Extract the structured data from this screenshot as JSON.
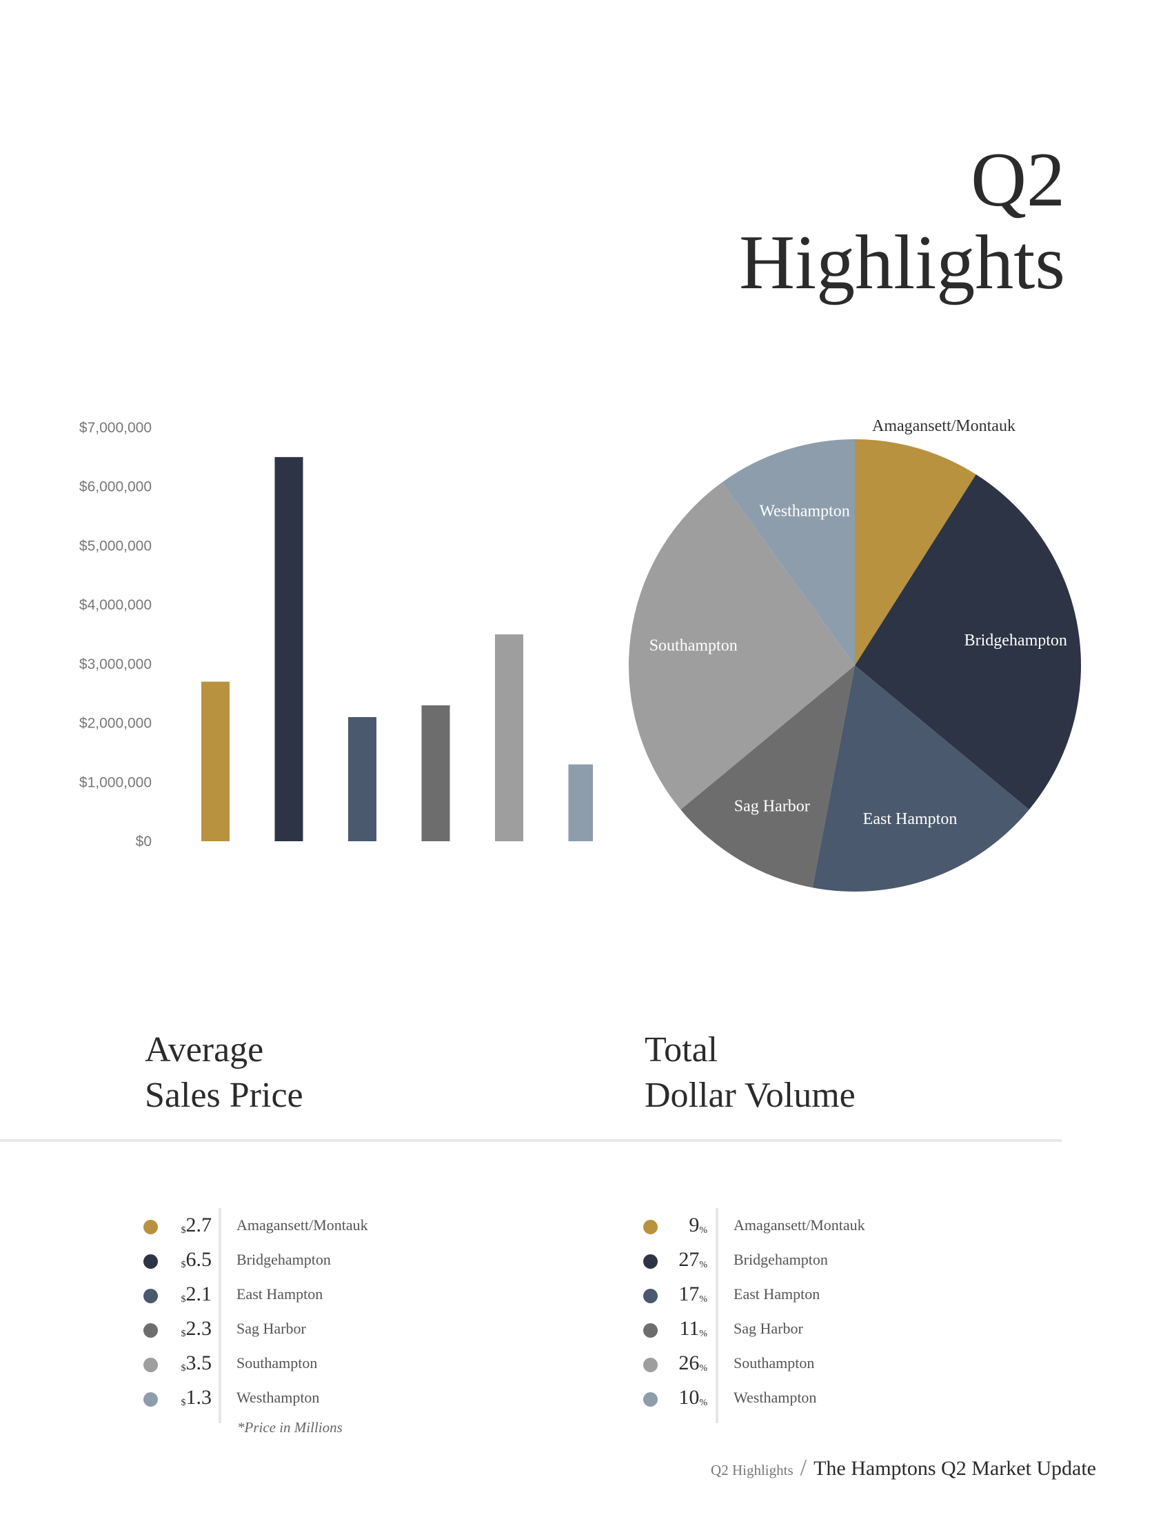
{
  "title": {
    "line1": "Q2",
    "line2": "Highlights"
  },
  "colors": {
    "Amagansett/Montauk": "#b8923f",
    "Bridgehampton": "#2d3445",
    "East Hampton": "#4a596d",
    "Sag Harbor": "#6d6d6d",
    "Southampton": "#9e9e9e",
    "Westhampton": "#8d9dac"
  },
  "chart_data": [
    {
      "type": "bar",
      "categories": [
        "Amagansett/Montauk",
        "Bridgehampton",
        "East Hampton",
        "Sag Harbor",
        "Southampton",
        "Westhampton"
      ],
      "values": [
        2700000,
        6500000,
        2100000,
        2300000,
        3500000,
        1300000
      ],
      "ylim": [
        0,
        7000000
      ],
      "yticks": [
        "$0",
        "$1,000,000",
        "$2,000,000",
        "$3,000,000",
        "$4,000,000",
        "$5,000,000",
        "$6,000,000",
        "$7,000,000"
      ],
      "grid": false
    },
    {
      "type": "pie",
      "categories": [
        "Amagansett/Montauk",
        "Bridgehampton",
        "East Hampton",
        "Sag Harbor",
        "Southampton",
        "Westhampton"
      ],
      "values": [
        9,
        27,
        17,
        11,
        26,
        10
      ]
    }
  ],
  "left_section": {
    "line1": "Average",
    "line2": "Sales Price"
  },
  "right_section": {
    "line1": "Total",
    "line2": "Dollar Volume"
  },
  "avg_price_legend": [
    {
      "prefix": "$",
      "value": "2.7",
      "name": "Amagansett/Montauk"
    },
    {
      "prefix": "$",
      "value": "6.5",
      "name": "Bridgehampton"
    },
    {
      "prefix": "$",
      "value": "2.1",
      "name": "East Hampton"
    },
    {
      "prefix": "$",
      "value": "2.3",
      "name": "Sag Harbor"
    },
    {
      "prefix": "$",
      "value": "3.5",
      "name": "Southampton"
    },
    {
      "prefix": "$",
      "value": "1.3",
      "name": "Westhampton"
    }
  ],
  "volume_legend": [
    {
      "value": "9",
      "suffix": "%",
      "name": "Amagansett/Montauk"
    },
    {
      "value": "27",
      "suffix": "%",
      "name": "Bridgehampton"
    },
    {
      "value": "17",
      "suffix": "%",
      "name": "East Hampton"
    },
    {
      "value": "11",
      "suffix": "%",
      "name": "Sag Harbor"
    },
    {
      "value": "26",
      "suffix": "%",
      "name": "Southampton"
    },
    {
      "value": "10",
      "suffix": "%",
      "name": "Westhampton"
    }
  ],
  "note": "*Price in Millions",
  "footer": {
    "section": "Q2 Highlights",
    "separator": "/",
    "title": "The Hamptons Q2 Market Update"
  }
}
